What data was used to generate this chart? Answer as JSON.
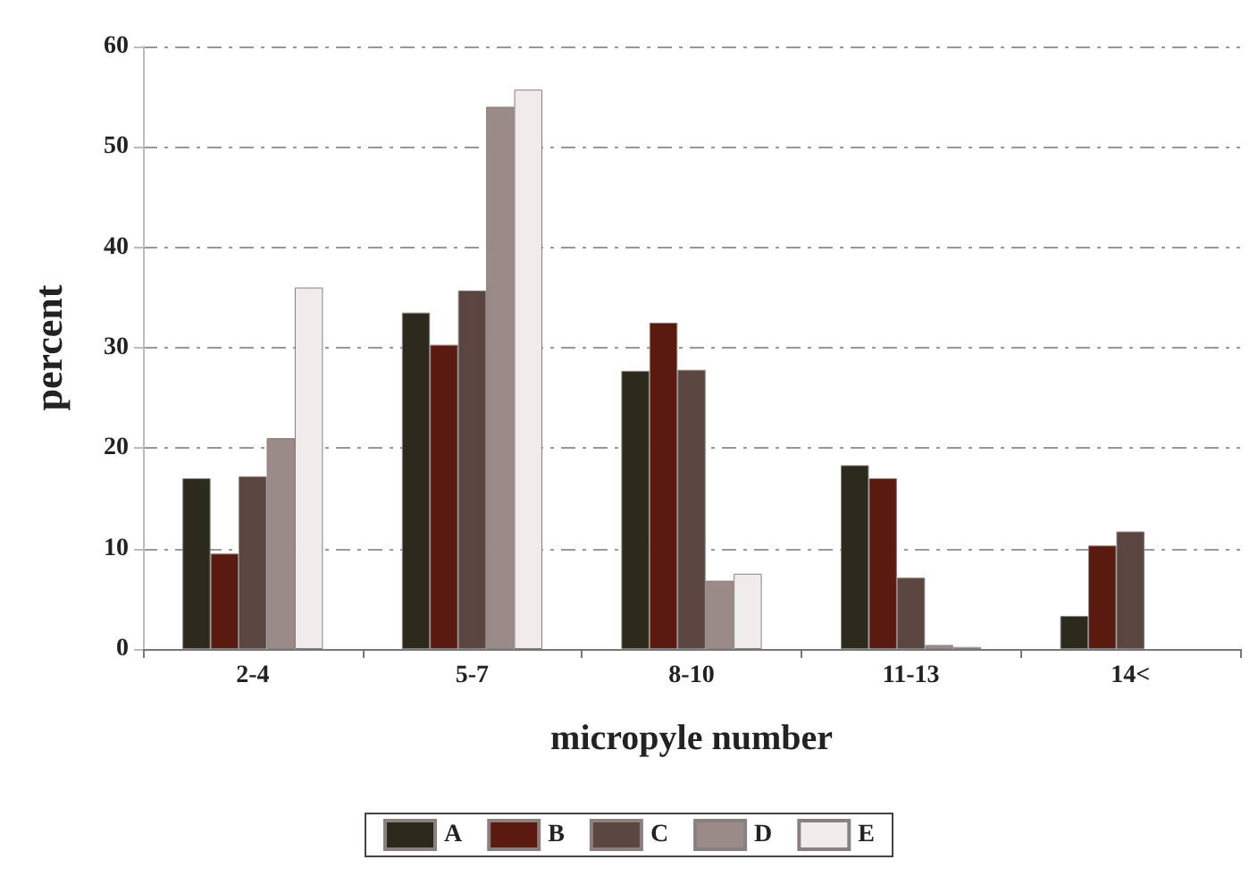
{
  "chart_data": {
    "type": "bar",
    "xlabel": "micropyle number",
    "ylabel": "percent",
    "categories": [
      "2-4",
      "5-7",
      "8-10",
      "11-13",
      "14<"
    ],
    "series": [
      {
        "name": "A",
        "color": "#2b2a1c",
        "values": [
          17,
          33.5,
          27.7,
          18.3,
          3.3
        ]
      },
      {
        "name": "B",
        "color": "#5a1a10",
        "values": [
          9.5,
          30.3,
          32.5,
          17,
          10.3
        ]
      },
      {
        "name": "C",
        "color": "#5a4540",
        "values": [
          17.2,
          35.7,
          27.8,
          7.1,
          11.7
        ]
      },
      {
        "name": "D",
        "color": "#9a8a88",
        "values": [
          21,
          54,
          6.8,
          0.4,
          null
        ]
      },
      {
        "name": "E",
        "color": "#f0ecec",
        "values": [
          36,
          55.7,
          7.5,
          0.2,
          null
        ]
      }
    ],
    "ylim": [
      0,
      60
    ],
    "yticks": [
      0,
      10,
      20,
      30,
      40,
      50,
      60
    ],
    "grid": "y",
    "legend": "bottom"
  }
}
